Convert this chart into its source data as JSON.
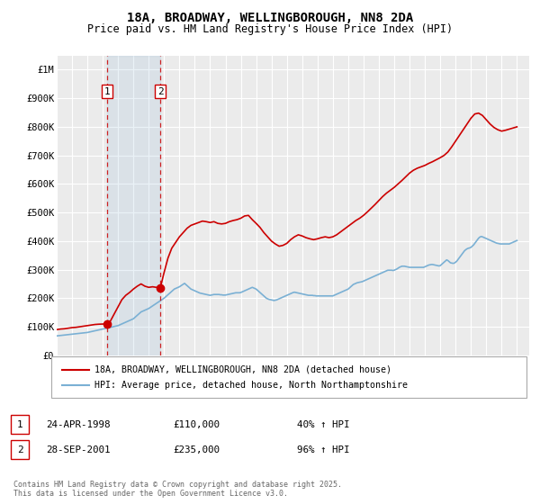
{
  "title": "18A, BROADWAY, WELLINGBOROUGH, NN8 2DA",
  "subtitle": "Price paid vs. HM Land Registry's House Price Index (HPI)",
  "title_fontsize": 10,
  "subtitle_fontsize": 8.5,
  "ytick_vals": [
    0,
    100000,
    200000,
    300000,
    400000,
    500000,
    600000,
    700000,
    800000,
    900000,
    1000000
  ],
  "ylim": [
    0,
    1050000
  ],
  "xlim_start": 1995.0,
  "xlim_end": 2025.8,
  "background_color": "#ffffff",
  "plot_background": "#ebebeb",
  "grid_color": "#ffffff",
  "hpi_line_color": "#7ab0d4",
  "price_line_color": "#cc0000",
  "hpi_fill_color": "#c8dff0",
  "sale1_x": 1998.3,
  "sale1_y": 110000,
  "sale2_x": 2001.75,
  "sale2_y": 235000,
  "sale1_date": "24-APR-1998",
  "sale1_price": "£110,000",
  "sale1_hpi": "40% ↑ HPI",
  "sale2_date": "28-SEP-2001",
  "sale2_price": "£235,000",
  "sale2_hpi": "96% ↑ HPI",
  "legend_line1": "18A, BROADWAY, WELLINGBOROUGH, NN8 2DA (detached house)",
  "legend_line2": "HPI: Average price, detached house, North Northamptonshire",
  "copyright": "Contains HM Land Registry data © Crown copyright and database right 2025.\nThis data is licensed under the Open Government Licence v3.0.",
  "hpi_x": [
    1995.0,
    1995.083,
    1995.167,
    1995.25,
    1995.333,
    1995.417,
    1995.5,
    1995.583,
    1995.667,
    1995.75,
    1995.833,
    1995.917,
    1996.0,
    1996.083,
    1996.167,
    1996.25,
    1996.333,
    1996.417,
    1996.5,
    1996.583,
    1996.667,
    1996.75,
    1996.833,
    1996.917,
    1997.0,
    1997.083,
    1997.167,
    1997.25,
    1997.333,
    1997.417,
    1997.5,
    1997.583,
    1997.667,
    1997.75,
    1997.833,
    1997.917,
    1998.0,
    1998.083,
    1998.167,
    1998.25,
    1998.333,
    1998.417,
    1998.5,
    1998.583,
    1998.667,
    1998.75,
    1998.833,
    1998.917,
    1999.0,
    1999.083,
    1999.167,
    1999.25,
    1999.333,
    1999.417,
    1999.5,
    1999.583,
    1999.667,
    1999.75,
    1999.833,
    1999.917,
    2000.0,
    2000.083,
    2000.167,
    2000.25,
    2000.333,
    2000.417,
    2000.5,
    2000.583,
    2000.667,
    2000.75,
    2000.833,
    2000.917,
    2001.0,
    2001.083,
    2001.167,
    2001.25,
    2001.333,
    2001.417,
    2001.5,
    2001.583,
    2001.667,
    2001.75,
    2001.833,
    2001.917,
    2002.0,
    2002.083,
    2002.167,
    2002.25,
    2002.333,
    2002.417,
    2002.5,
    2002.583,
    2002.667,
    2002.75,
    2002.833,
    2002.917,
    2003.0,
    2003.083,
    2003.167,
    2003.25,
    2003.333,
    2003.417,
    2003.5,
    2003.583,
    2003.667,
    2003.75,
    2003.833,
    2003.917,
    2004.0,
    2004.083,
    2004.167,
    2004.25,
    2004.333,
    2004.417,
    2004.5,
    2004.583,
    2004.667,
    2004.75,
    2004.833,
    2004.917,
    2005.0,
    2005.083,
    2005.167,
    2005.25,
    2005.333,
    2005.417,
    2005.5,
    2005.583,
    2005.667,
    2005.75,
    2005.833,
    2005.917,
    2006.0,
    2006.083,
    2006.167,
    2006.25,
    2006.333,
    2006.417,
    2006.5,
    2006.583,
    2006.667,
    2006.75,
    2006.833,
    2006.917,
    2007.0,
    2007.083,
    2007.167,
    2007.25,
    2007.333,
    2007.417,
    2007.5,
    2007.583,
    2007.667,
    2007.75,
    2007.833,
    2007.917,
    2008.0,
    2008.083,
    2008.167,
    2008.25,
    2008.333,
    2008.417,
    2008.5,
    2008.583,
    2008.667,
    2008.75,
    2008.833,
    2008.917,
    2009.0,
    2009.083,
    2009.167,
    2009.25,
    2009.333,
    2009.417,
    2009.5,
    2009.583,
    2009.667,
    2009.75,
    2009.833,
    2009.917,
    2010.0,
    2010.083,
    2010.167,
    2010.25,
    2010.333,
    2010.417,
    2010.5,
    2010.583,
    2010.667,
    2010.75,
    2010.833,
    2010.917,
    2011.0,
    2011.083,
    2011.167,
    2011.25,
    2011.333,
    2011.417,
    2011.5,
    2011.583,
    2011.667,
    2011.75,
    2011.833,
    2011.917,
    2012.0,
    2012.083,
    2012.167,
    2012.25,
    2012.333,
    2012.417,
    2012.5,
    2012.583,
    2012.667,
    2012.75,
    2012.833,
    2012.917,
    2013.0,
    2013.083,
    2013.167,
    2013.25,
    2013.333,
    2013.417,
    2013.5,
    2013.583,
    2013.667,
    2013.75,
    2013.833,
    2013.917,
    2014.0,
    2014.083,
    2014.167,
    2014.25,
    2014.333,
    2014.417,
    2014.5,
    2014.583,
    2014.667,
    2014.75,
    2014.833,
    2014.917,
    2015.0,
    2015.083,
    2015.167,
    2015.25,
    2015.333,
    2015.417,
    2015.5,
    2015.583,
    2015.667,
    2015.75,
    2015.833,
    2015.917,
    2016.0,
    2016.083,
    2016.167,
    2016.25,
    2016.333,
    2016.417,
    2016.5,
    2016.583,
    2016.667,
    2016.75,
    2016.833,
    2016.917,
    2017.0,
    2017.083,
    2017.167,
    2017.25,
    2017.333,
    2017.417,
    2017.5,
    2017.583,
    2017.667,
    2017.75,
    2017.833,
    2017.917,
    2018.0,
    2018.083,
    2018.167,
    2018.25,
    2018.333,
    2018.417,
    2018.5,
    2018.583,
    2018.667,
    2018.75,
    2018.833,
    2018.917,
    2019.0,
    2019.083,
    2019.167,
    2019.25,
    2019.333,
    2019.417,
    2019.5,
    2019.583,
    2019.667,
    2019.75,
    2019.833,
    2019.917,
    2020.0,
    2020.083,
    2020.167,
    2020.25,
    2020.333,
    2020.417,
    2020.5,
    2020.583,
    2020.667,
    2020.75,
    2020.833,
    2020.917,
    2021.0,
    2021.083,
    2021.167,
    2021.25,
    2021.333,
    2021.417,
    2021.5,
    2021.583,
    2021.667,
    2021.75,
    2021.833,
    2021.917,
    2022.0,
    2022.083,
    2022.167,
    2022.25,
    2022.333,
    2022.417,
    2022.5,
    2022.583,
    2022.667,
    2022.75,
    2022.833,
    2022.917,
    2023.0,
    2023.083,
    2023.167,
    2023.25,
    2023.333,
    2023.417,
    2023.5,
    2023.583,
    2023.667,
    2023.75,
    2023.833,
    2023.917,
    2024.0,
    2024.083,
    2024.167,
    2024.25,
    2024.333,
    2024.417,
    2024.5,
    2024.583,
    2024.667,
    2024.75,
    2024.833,
    2024.917,
    2025.0
  ],
  "hpi_y": [
    68000,
    68500,
    69000,
    69500,
    70000,
    70500,
    71000,
    71500,
    72000,
    72500,
    73000,
    73500,
    74000,
    74500,
    75000,
    75500,
    76000,
    76500,
    77000,
    77500,
    78000,
    78500,
    79000,
    79500,
    80000,
    81000,
    82000,
    83000,
    84000,
    85000,
    86000,
    87000,
    88000,
    89000,
    90000,
    91000,
    92000,
    93000,
    94000,
    95000,
    96000,
    97000,
    98000,
    99000,
    100000,
    101000,
    102000,
    103000,
    104000,
    106000,
    108000,
    110000,
    112000,
    114000,
    116000,
    118000,
    120000,
    122000,
    124000,
    126000,
    128000,
    132000,
    136000,
    140000,
    144000,
    148000,
    152000,
    154000,
    156000,
    158000,
    160000,
    162000,
    164000,
    167000,
    170000,
    173000,
    176000,
    179000,
    182000,
    185000,
    188000,
    191000,
    194000,
    197000,
    200000,
    204000,
    208000,
    212000,
    216000,
    220000,
    224000,
    228000,
    232000,
    234000,
    236000,
    238000,
    240000,
    243000,
    246000,
    249000,
    252000,
    248000,
    244000,
    240000,
    236000,
    232000,
    230000,
    228000,
    226000,
    224000,
    222000,
    220000,
    218000,
    217000,
    216000,
    215000,
    214000,
    213000,
    212000,
    211000,
    210000,
    211000,
    212000,
    213000,
    213000,
    213000,
    213000,
    213000,
    212000,
    212000,
    211000,
    211000,
    211000,
    212000,
    213000,
    214000,
    215000,
    216000,
    217000,
    218000,
    219000,
    219000,
    219000,
    219000,
    220000,
    222000,
    224000,
    226000,
    228000,
    230000,
    232000,
    234000,
    236000,
    238000,
    236000,
    234000,
    232000,
    228000,
    224000,
    220000,
    216000,
    212000,
    208000,
    204000,
    200000,
    198000,
    196000,
    195000,
    194000,
    193000,
    192000,
    193000,
    194000,
    196000,
    198000,
    200000,
    202000,
    204000,
    206000,
    208000,
    210000,
    212000,
    214000,
    216000,
    218000,
    220000,
    221000,
    220000,
    219000,
    218000,
    217000,
    216000,
    215000,
    214000,
    213000,
    212000,
    211000,
    210000,
    210000,
    210000,
    210000,
    209000,
    209000,
    208000,
    208000,
    208000,
    208000,
    208000,
    208000,
    208000,
    208000,
    208000,
    208000,
    208000,
    208000,
    208000,
    208000,
    210000,
    212000,
    214000,
    216000,
    218000,
    220000,
    222000,
    224000,
    226000,
    228000,
    230000,
    232000,
    236000,
    240000,
    244000,
    248000,
    250000,
    252000,
    254000,
    255000,
    256000,
    257000,
    258000,
    260000,
    262000,
    264000,
    266000,
    268000,
    270000,
    272000,
    274000,
    276000,
    278000,
    280000,
    282000,
    284000,
    286000,
    288000,
    290000,
    292000,
    294000,
    296000,
    298000,
    298000,
    298000,
    298000,
    297000,
    298000,
    300000,
    302000,
    305000,
    308000,
    310000,
    312000,
    312000,
    312000,
    311000,
    310000,
    309000,
    308000,
    308000,
    308000,
    308000,
    308000,
    308000,
    308000,
    308000,
    308000,
    308000,
    308000,
    308000,
    310000,
    312000,
    314000,
    316000,
    317000,
    318000,
    318000,
    317000,
    316000,
    315000,
    314000,
    313000,
    314000,
    318000,
    322000,
    326000,
    330000,
    334000,
    332000,
    328000,
    324000,
    323000,
    322000,
    323000,
    326000,
    330000,
    336000,
    342000,
    348000,
    354000,
    360000,
    366000,
    370000,
    373000,
    375000,
    376000,
    378000,
    382000,
    386000,
    392000,
    398000,
    404000,
    410000,
    414000,
    416000,
    415000,
    413000,
    411000,
    409000,
    407000,
    405000,
    403000,
    401000,
    399000,
    397000,
    395000,
    393000,
    392000,
    391000,
    390000,
    390000,
    390000,
    390000,
    390000,
    390000,
    390000,
    390000,
    392000,
    394000,
    396000,
    398000,
    400000,
    402000
  ],
  "price_x": [
    1995.0,
    1995.25,
    1995.5,
    1995.75,
    1996.0,
    1996.25,
    1996.5,
    1996.75,
    1997.0,
    1997.25,
    1997.5,
    1997.75,
    1998.0,
    1998.15,
    1998.3,
    1998.5,
    1998.75,
    1999.0,
    1999.25,
    1999.5,
    1999.75,
    2000.0,
    2000.25,
    2000.5,
    2000.75,
    2001.0,
    2001.25,
    2001.5,
    2001.75,
    2002.0,
    2002.25,
    2002.5,
    2002.75,
    2003.0,
    2003.25,
    2003.5,
    2003.75,
    2004.0,
    2004.25,
    2004.5,
    2004.75,
    2005.0,
    2005.25,
    2005.5,
    2005.75,
    2006.0,
    2006.25,
    2006.5,
    2006.75,
    2007.0,
    2007.25,
    2007.5,
    2007.75,
    2008.0,
    2008.25,
    2008.5,
    2008.75,
    2009.0,
    2009.25,
    2009.5,
    2009.75,
    2010.0,
    2010.25,
    2010.5,
    2010.75,
    2011.0,
    2011.25,
    2011.5,
    2011.75,
    2012.0,
    2012.25,
    2012.5,
    2012.75,
    2013.0,
    2013.25,
    2013.5,
    2013.75,
    2014.0,
    2014.25,
    2014.5,
    2014.75,
    2015.0,
    2015.25,
    2015.5,
    2015.75,
    2016.0,
    2016.25,
    2016.5,
    2016.75,
    2017.0,
    2017.25,
    2017.5,
    2017.75,
    2018.0,
    2018.25,
    2018.5,
    2018.75,
    2019.0,
    2019.25,
    2019.5,
    2019.75,
    2020.0,
    2020.25,
    2020.5,
    2020.75,
    2021.0,
    2021.25,
    2021.5,
    2021.75,
    2022.0,
    2022.25,
    2022.5,
    2022.75,
    2023.0,
    2023.25,
    2023.5,
    2023.75,
    2024.0,
    2024.25,
    2024.5,
    2024.75,
    2025.0
  ],
  "price_y": [
    90000,
    92000,
    93000,
    95000,
    97000,
    98000,
    100000,
    102000,
    104000,
    106000,
    108000,
    109000,
    109500,
    109800,
    110000,
    120000,
    145000,
    170000,
    195000,
    210000,
    220000,
    232000,
    242000,
    250000,
    242000,
    238000,
    240000,
    238000,
    235000,
    290000,
    340000,
    375000,
    395000,
    415000,
    430000,
    445000,
    455000,
    460000,
    465000,
    470000,
    468000,
    465000,
    468000,
    462000,
    460000,
    462000,
    468000,
    472000,
    475000,
    480000,
    488000,
    490000,
    475000,
    462000,
    448000,
    430000,
    415000,
    400000,
    390000,
    382000,
    385000,
    392000,
    405000,
    415000,
    422000,
    418000,
    412000,
    408000,
    405000,
    408000,
    412000,
    415000,
    412000,
    415000,
    422000,
    432000,
    442000,
    452000,
    462000,
    472000,
    480000,
    490000,
    502000,
    515000,
    528000,
    542000,
    556000,
    568000,
    578000,
    588000,
    600000,
    612000,
    625000,
    638000,
    648000,
    655000,
    660000,
    665000,
    672000,
    678000,
    685000,
    692000,
    700000,
    712000,
    730000,
    750000,
    770000,
    790000,
    810000,
    830000,
    845000,
    848000,
    840000,
    825000,
    810000,
    798000,
    790000,
    785000,
    788000,
    792000,
    796000,
    800000
  ]
}
